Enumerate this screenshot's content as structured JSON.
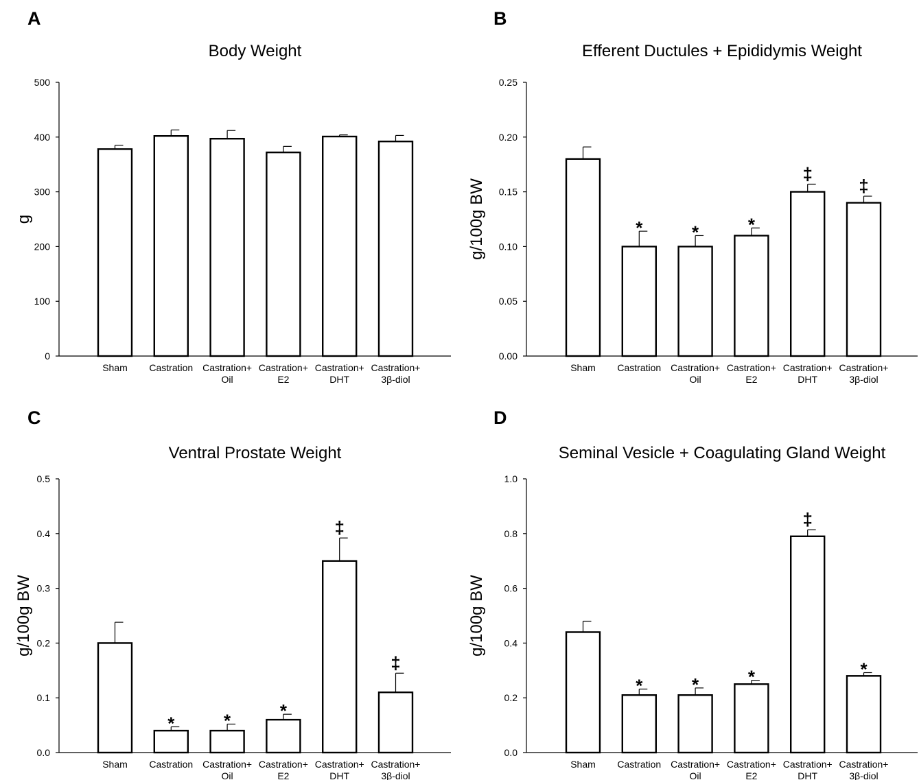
{
  "chart_data": [
    {
      "panel": "A",
      "type": "bar",
      "title": "Body Weight",
      "ylabel": "g",
      "xlabel": "",
      "ylim": [
        0,
        500
      ],
      "yticks": [
        "0",
        "100",
        "200",
        "300",
        "400",
        "500"
      ],
      "categories": [
        [
          "Sham"
        ],
        [
          "Castration"
        ],
        [
          "Castration+",
          "Oil"
        ],
        [
          "Castration+",
          "E2"
        ],
        [
          "Castration+",
          "DHT"
        ],
        [
          "Castration+",
          "3β-diol"
        ]
      ],
      "values": [
        378,
        402,
        397,
        372,
        401,
        392
      ],
      "errors": [
        7,
        11,
        15,
        11,
        3,
        11
      ],
      "marks": [
        "",
        "",
        "",
        "",
        "",
        ""
      ]
    },
    {
      "panel": "B",
      "type": "bar",
      "title": "Efferent Ductules + Epididymis Weight",
      "ylabel": "g/100g BW",
      "xlabel": "",
      "ylim": [
        0,
        0.25
      ],
      "yticks": [
        "0.00",
        "0.05",
        "0.10",
        "0.15",
        "0.20",
        "0.25"
      ],
      "categories": [
        [
          "Sham"
        ],
        [
          "Castration"
        ],
        [
          "Castration+",
          "Oil"
        ],
        [
          "Castration+",
          "E2"
        ],
        [
          "Castration+",
          "DHT"
        ],
        [
          "Castration+",
          "3β-diol"
        ]
      ],
      "values": [
        0.18,
        0.1,
        0.1,
        0.11,
        0.15,
        0.14
      ],
      "errors": [
        0.011,
        0.014,
        0.01,
        0.007,
        0.007,
        0.006
      ],
      "marks": [
        "",
        "*",
        "*",
        "*",
        "‡",
        "‡"
      ]
    },
    {
      "panel": "C",
      "type": "bar",
      "title": "Ventral Prostate Weight",
      "ylabel": "g/100g BW",
      "xlabel": "",
      "ylim": [
        0,
        0.5
      ],
      "yticks": [
        "0.0",
        "0.1",
        "0.2",
        "0.3",
        "0.4",
        "0.5"
      ],
      "categories": [
        [
          "Sham"
        ],
        [
          "Castration"
        ],
        [
          "Castration+",
          "Oil"
        ],
        [
          "Castration+",
          "E2"
        ],
        [
          "Castration+",
          "DHT"
        ],
        [
          "Castration+",
          "3β-diol"
        ]
      ],
      "values": [
        0.2,
        0.04,
        0.04,
        0.06,
        0.35,
        0.11
      ],
      "errors": [
        0.038,
        0.007,
        0.012,
        0.01,
        0.042,
        0.035
      ],
      "marks": [
        "",
        "*",
        "*",
        "*",
        "‡",
        "‡"
      ]
    },
    {
      "panel": "D",
      "type": "bar",
      "title": "Seminal Vesicle + Coagulating Gland Weight",
      "ylabel": "g/100g BW",
      "xlabel": "",
      "ylim": [
        0,
        1.0
      ],
      "yticks": [
        "0.0",
        "0.2",
        "0.4",
        "0.6",
        "0.8",
        "1.0"
      ],
      "categories": [
        [
          "Sham"
        ],
        [
          "Castration"
        ],
        [
          "Castration+",
          "Oil"
        ],
        [
          "Castration+",
          "E2"
        ],
        [
          "Castration+",
          "DHT"
        ],
        [
          "Castration+",
          "3β-diol"
        ]
      ],
      "values": [
        0.44,
        0.21,
        0.21,
        0.25,
        0.79,
        0.28
      ],
      "errors": [
        0.04,
        0.022,
        0.026,
        0.014,
        0.024,
        0.012
      ],
      "marks": [
        "",
        "*",
        "*",
        "*",
        "‡",
        "*"
      ]
    }
  ]
}
